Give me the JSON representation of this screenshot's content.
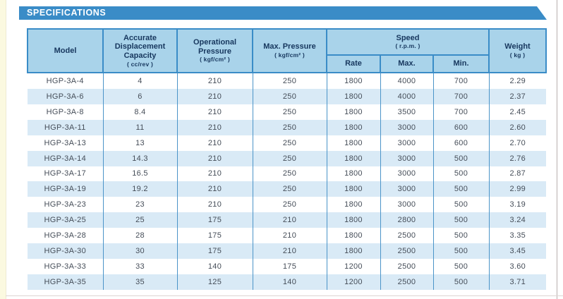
{
  "title_bar": {
    "label": "SPECIFICATIONS"
  },
  "colors": {
    "title_bar_bg": "#3a8cc7",
    "header_bg": "#a9d3ea",
    "header_text": "#17375e",
    "header_border": "#3a8cc7",
    "body_divider": "#4b94c8",
    "row_alt_bg": "#d9eaf6",
    "body_text": "#454d58",
    "left_strip": "#fbf9e0"
  },
  "table": {
    "header": {
      "model": "Model",
      "capacity_label": "Accurate Displacement Capacity",
      "capacity_unit": "( cc/rev )",
      "op_pressure_label": "Operational Pressure",
      "op_pressure_unit": "( kgf/cm² )",
      "max_pressure_label": "Max. Pressure",
      "max_pressure_unit": "( kgf/cm² )",
      "speed_label": "Speed",
      "speed_unit": "( r.p.m. )",
      "rate": "Rate",
      "max": "Max.",
      "min": "Min.",
      "weight_label": "Weight",
      "weight_unit": "( kg )"
    },
    "rows": [
      {
        "model": "HGP-3A-4",
        "capacity": "4",
        "op_pressure": "210",
        "max_pressure": "250",
        "rate": "1800",
        "max": "4000",
        "min": "700",
        "weight": "2.29"
      },
      {
        "model": "HGP-3A-6",
        "capacity": "6",
        "op_pressure": "210",
        "max_pressure": "250",
        "rate": "1800",
        "max": "4000",
        "min": "700",
        "weight": "2.37"
      },
      {
        "model": "HGP-3A-8",
        "capacity": "8.4",
        "op_pressure": "210",
        "max_pressure": "250",
        "rate": "1800",
        "max": "3500",
        "min": "700",
        "weight": "2.45"
      },
      {
        "model": "HGP-3A-11",
        "capacity": "11",
        "op_pressure": "210",
        "max_pressure": "250",
        "rate": "1800",
        "max": "3000",
        "min": "600",
        "weight": "2.60"
      },
      {
        "model": "HGP-3A-13",
        "capacity": "13",
        "op_pressure": "210",
        "max_pressure": "250",
        "rate": "1800",
        "max": "3000",
        "min": "600",
        "weight": "2.70"
      },
      {
        "model": "HGP-3A-14",
        "capacity": "14.3",
        "op_pressure": "210",
        "max_pressure": "250",
        "rate": "1800",
        "max": "3000",
        "min": "500",
        "weight": "2.76"
      },
      {
        "model": "HGP-3A-17",
        "capacity": "16.5",
        "op_pressure": "210",
        "max_pressure": "250",
        "rate": "1800",
        "max": "3000",
        "min": "500",
        "weight": "2.87"
      },
      {
        "model": "HGP-3A-19",
        "capacity": "19.2",
        "op_pressure": "210",
        "max_pressure": "250",
        "rate": "1800",
        "max": "3000",
        "min": "500",
        "weight": "2.99"
      },
      {
        "model": "HGP-3A-23",
        "capacity": "23",
        "op_pressure": "210",
        "max_pressure": "250",
        "rate": "1800",
        "max": "3000",
        "min": "500",
        "weight": "3.19"
      },
      {
        "model": "HGP-3A-25",
        "capacity": "25",
        "op_pressure": "175",
        "max_pressure": "210",
        "rate": "1800",
        "max": "2800",
        "min": "500",
        "weight": "3.24"
      },
      {
        "model": "HGP-3A-28",
        "capacity": "28",
        "op_pressure": "175",
        "max_pressure": "210",
        "rate": "1800",
        "max": "2500",
        "min": "500",
        "weight": "3.35"
      },
      {
        "model": "HGP-3A-30",
        "capacity": "30",
        "op_pressure": "175",
        "max_pressure": "210",
        "rate": "1800",
        "max": "2500",
        "min": "500",
        "weight": "3.45"
      },
      {
        "model": "HGP-3A-33",
        "capacity": "33",
        "op_pressure": "140",
        "max_pressure": "175",
        "rate": "1200",
        "max": "2500",
        "min": "500",
        "weight": "3.60"
      },
      {
        "model": "HGP-3A-35",
        "capacity": "35",
        "op_pressure": "125",
        "max_pressure": "140",
        "rate": "1200",
        "max": "2500",
        "min": "500",
        "weight": "3.71"
      }
    ]
  }
}
